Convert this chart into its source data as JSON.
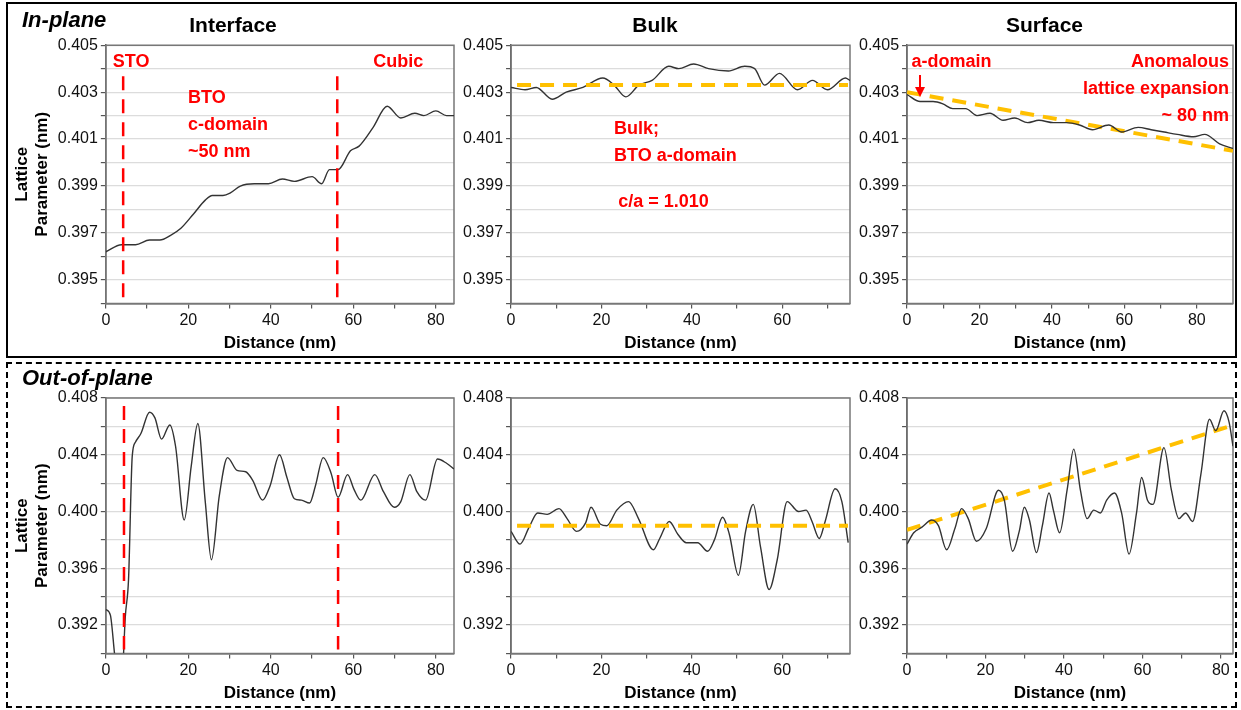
{
  "chart_data": [
    {
      "type": "line",
      "title": "Interface",
      "subtitle": "In-plane",
      "xlabel": "Distance (nm)",
      "ylabel": "Lattice\nParameter (nm)",
      "xlim": [
        0,
        84.4
      ],
      "ylim": [
        0.394,
        0.405
      ],
      "xticks": [
        0,
        {
          "value": 10,
          "label": null
        },
        20,
        {
          "value": 30,
          "label": null
        },
        40,
        {
          "value": 50,
          "label": null
        },
        60,
        {
          "value": 70,
          "label": null
        },
        80
      ],
      "yticks": [
        {
          "value": 0.394,
          "label": null
        },
        0.395,
        {
          "value": 0.396,
          "label": null
        },
        0.397,
        {
          "value": 0.398,
          "label": null
        },
        0.399,
        {
          "value": 0.4,
          "label": null
        },
        0.401,
        {
          "value": 0.402,
          "label": null
        },
        0.403,
        {
          "value": 0.404,
          "label": null
        },
        0.405
      ],
      "grid": "y",
      "legend": false,
      "marker": "none",
      "series": [
        {
          "color": "#333333",
          "x": [
            0,
            3.8,
            7.2,
            10.6,
            13.1,
            15.7,
            18.2,
            21.2,
            24.1,
            25.8,
            28.4,
            30.1,
            32.6,
            36,
            39.4,
            42.8,
            45.7,
            50,
            52.3,
            54.2,
            56.3,
            59.3,
            61.4,
            64.8,
            68.2,
            71.5,
            74.9,
            77.1,
            80,
            82.6,
            84.4
          ],
          "values": [
            0.3962,
            0.3965,
            0.3965,
            0.3967,
            0.3967,
            0.3969,
            0.3972,
            0.3978,
            0.3984,
            0.3986,
            0.3986,
            0.3987,
            0.399,
            0.3991,
            0.3991,
            0.3993,
            0.3992,
            0.3994,
            0.3991,
            0.3997,
            0.3997,
            0.4005,
            0.4007,
            0.4015,
            0.4024,
            0.4019,
            0.4021,
            0.402,
            0.4022,
            0.402,
            0.402
          ]
        }
      ],
      "ref_lines": [
        {
          "axis": "x",
          "value": 4.2,
          "color": "#ff0000",
          "line_style": "dashed"
        },
        {
          "axis": "x",
          "value": 56.1,
          "color": "#ff0000",
          "line_style": "dashed"
        }
      ],
      "annotations": [
        "STO",
        "Cubic",
        "BTO\nc-domain\n~50 nm"
      ]
    },
    {
      "type": "line",
      "title": "Bulk",
      "xlabel": "Distance (nm)",
      "xlim": [
        0,
        75
      ],
      "ylim": [
        0.394,
        0.405
      ],
      "xticks": [
        0,
        {
          "value": 10,
          "label": null
        },
        20,
        {
          "value": 30,
          "label": null
        },
        40,
        {
          "value": 50,
          "label": null
        },
        60,
        {
          "value": 70,
          "label": null
        }
      ],
      "yticks": [
        {
          "value": 0.394,
          "label": null
        },
        0.395,
        {
          "value": 0.396,
          "label": null
        },
        0.397,
        {
          "value": 0.398,
          "label": null
        },
        0.399,
        {
          "value": 0.4,
          "label": null
        },
        0.401,
        {
          "value": 0.402,
          "label": null
        },
        0.403,
        {
          "value": 0.404,
          "label": null
        },
        0.405
      ],
      "grid": "y",
      "legend": false,
      "marker": "none",
      "series": [
        {
          "color": "#333333",
          "x": [
            0,
            3.1,
            5.6,
            9.1,
            12.2,
            15.9,
            20.3,
            22.8,
            25.4,
            28.3,
            31.2,
            34.9,
            37.1,
            40.4,
            43.7,
            48.1,
            51.7,
            53.9,
            56.1,
            59.4,
            63.4,
            66.7,
            70,
            74,
            75
          ],
          "values": [
            0.4032,
            0.4031,
            0.4032,
            0.4027,
            0.403,
            0.4032,
            0.4036,
            0.4033,
            0.4028,
            0.4033,
            0.4035,
            0.4041,
            0.404,
            0.4042,
            0.404,
            0.4039,
            0.4041,
            0.404,
            0.4033,
            0.4038,
            0.4031,
            0.4035,
            0.4031,
            0.4036,
            0.4035
          ]
        }
      ],
      "ref_lines": [
        {
          "axis": "y",
          "value": 0.4033,
          "color": "#ffc000",
          "line_style": "dashed"
        }
      ],
      "annotations": [
        "Bulk;\nBTO a-domain",
        "c/a = 1.010"
      ]
    },
    {
      "type": "line",
      "title": "Surface",
      "xlabel": "Distance (nm)",
      "xlim": [
        0,
        90
      ],
      "ylim": [
        0.394,
        0.405
      ],
      "xticks": [
        0,
        {
          "value": 10,
          "label": null
        },
        20,
        {
          "value": 30,
          "label": null
        },
        40,
        {
          "value": 50,
          "label": null
        },
        60,
        {
          "value": 70,
          "label": null
        },
        80
      ],
      "yticks": [
        {
          "value": 0.394,
          "label": null
        },
        0.395,
        {
          "value": 0.396,
          "label": null
        },
        0.397,
        {
          "value": 0.398,
          "label": null
        },
        0.399,
        {
          "value": 0.4,
          "label": null
        },
        0.401,
        {
          "value": 0.402,
          "label": null
        },
        0.403,
        {
          "value": 0.404,
          "label": null
        },
        0.405
      ],
      "grid": "y",
      "legend": false,
      "marker": "none",
      "series": [
        {
          "color": "#333333",
          "x": [
            0,
            3.6,
            7.2,
            9.9,
            12.6,
            16.2,
            19.3,
            22.9,
            26.5,
            29.7,
            33.3,
            36.4,
            40.4,
            44,
            47.6,
            51.2,
            55.7,
            59.3,
            63.8,
            67.4,
            71,
            74.6,
            79.1,
            82.2,
            86.3,
            90
          ],
          "values": [
            0.4029,
            0.4026,
            0.4026,
            0.4025,
            0.4023,
            0.4023,
            0.402,
            0.4021,
            0.4018,
            0.4019,
            0.4017,
            0.4018,
            0.4017,
            0.4017,
            0.4016,
            0.4014,
            0.4016,
            0.4013,
            0.4015,
            0.4014,
            0.4013,
            0.4012,
            0.4011,
            0.4012,
            0.4008,
            0.4006
          ]
        },
        {
          "type": "line",
          "color": "#ffc000",
          "line_style": "dashed",
          "x": [
            0,
            90
          ],
          "values": [
            0.403,
            0.4005
          ]
        }
      ],
      "annotations": [
        "a-domain",
        "Anomalous\nlattice expansion\n~ 80 nm"
      ]
    },
    {
      "type": "line",
      "subtitle": "Out-of-plane",
      "xlabel": "Distance (nm)",
      "ylabel": "Lattice\nParameter (nm)",
      "xlim": [
        0,
        84.4
      ],
      "ylim": [
        0.39,
        0.408
      ],
      "xticks": [
        0,
        {
          "value": 10,
          "label": null
        },
        20,
        {
          "value": 30,
          "label": null
        },
        40,
        {
          "value": 50,
          "label": null
        },
        60,
        {
          "value": 70,
          "label": null
        },
        80
      ],
      "yticks": [
        {
          "value": 0.39,
          "label": null
        },
        0.392,
        {
          "value": 0.394,
          "label": null
        },
        0.396,
        {
          "value": 0.398,
          "label": null
        },
        {
          "value": 0.4,
          "label": "0.400"
        },
        {
          "value": 0.402,
          "label": null
        },
        0.404,
        {
          "value": 0.406,
          "label": null
        },
        0.408
      ],
      "grid": "y",
      "legend": false,
      "marker": "none",
      "series": [
        {
          "color": "#333333",
          "x": [
            0,
            1.1,
            2.1,
            3.2,
            4.3,
            4.7,
            5.5,
            6.4,
            7.2,
            8.5,
            10.6,
            11.9,
            13.5,
            15.5,
            16.9,
            19,
            20.7,
            22.3,
            24.1,
            25.6,
            27.5,
            29.5,
            31.8,
            33.9,
            35.6,
            38,
            39.8,
            42.1,
            43.9,
            45.7,
            47.4,
            49.4,
            50.8,
            52.7,
            54.6,
            56.3,
            58.6,
            60.1,
            61.8,
            65.2,
            67.3,
            69.9,
            71.5,
            73.7,
            75.4,
            77.5,
            80.4,
            82.6,
            84.4
          ],
          "values": [
            0.3931,
            0.3927,
            0.39,
            null,
            0.39,
            0.3925,
            0.3952,
            0.4039,
            0.4049,
            0.4055,
            0.407,
            0.4066,
            0.4051,
            0.4061,
            0.4046,
            0.3994,
            0.4032,
            0.4062,
            0.4007,
            0.3966,
            0.4011,
            0.4038,
            0.4029,
            0.4028,
            0.4022,
            0.4008,
            0.4018,
            0.404,
            0.4024,
            0.4009,
            0.4008,
            0.4006,
            0.4018,
            0.4038,
            0.4027,
            0.401,
            0.4026,
            0.4016,
            0.4008,
            0.4026,
            0.4014,
            0.4003,
            0.4007,
            0.4026,
            0.4014,
            0.4008,
            0.4037,
            0.4034,
            0.403
          ]
        }
      ],
      "ref_lines": [
        {
          "axis": "x",
          "value": 4.4,
          "color": "#ff0000",
          "line_style": "dashed"
        },
        {
          "axis": "x",
          "value": 56.3,
          "color": "#ff0000",
          "line_style": "dashed"
        }
      ]
    },
    {
      "type": "line",
      "xlabel": "Distance (nm)",
      "xlim": [
        0,
        75
      ],
      "ylim": [
        0.39,
        0.408
      ],
      "xticks": [
        0,
        {
          "value": 10,
          "label": null
        },
        20,
        {
          "value": 30,
          "label": null
        },
        40,
        {
          "value": 50,
          "label": null
        },
        60,
        {
          "value": 70,
          "label": null
        }
      ],
      "yticks": [
        {
          "value": 0.39,
          "label": null
        },
        0.392,
        {
          "value": 0.394,
          "label": null
        },
        0.396,
        {
          "value": 0.398,
          "label": null
        },
        {
          "value": 0.4,
          "label": "0.400"
        },
        {
          "value": 0.402,
          "label": null
        },
        0.404,
        {
          "value": 0.406,
          "label": null
        },
        0.408
      ],
      "grid": "y",
      "legend": false,
      "marker": "none",
      "series": [
        {
          "color": "#333333",
          "x": [
            0,
            2,
            4,
            5.9,
            8,
            10.6,
            12.4,
            14.5,
            16.5,
            17.7,
            19.8,
            21.2,
            23.4,
            26,
            28.2,
            31.5,
            32.9,
            35,
            36.9,
            38.8,
            41.3,
            43.5,
            45,
            46.8,
            48.3,
            50.3,
            51.9,
            53.6,
            55.2,
            57.1,
            58.9,
            61.1,
            63.6,
            65.3,
            66.6,
            68.2,
            69.5,
            71.7,
            73.2,
            74.6
          ],
          "values": [
            0.3986,
            0.3977,
            0.3989,
            0.3999,
            0.3998,
            0.4002,
            0.3995,
            0.3986,
            0.3992,
            0.4003,
            0.3991,
            0.399,
            0.4001,
            0.4007,
            0.3995,
            0.3973,
            0.3981,
            0.3993,
            0.3984,
            0.3978,
            0.3978,
            0.3972,
            0.398,
            0.3996,
            0.3984,
            0.3955,
            0.3986,
            0.4005,
            0.3975,
            0.3945,
            0.3966,
            0.4007,
            0.4,
            0.4001,
            0.3993,
            0.3981,
            0.3993,
            0.4016,
            0.4007,
            0.3978
          ]
        }
      ],
      "ref_lines": [
        {
          "axis": "y",
          "value": 0.399,
          "color": "#ffc000",
          "line_style": "dashed"
        }
      ]
    },
    {
      "type": "line",
      "xlabel": "Distance (nm)",
      "xlim": [
        0,
        83.1
      ],
      "ylim": [
        0.39,
        0.408
      ],
      "xticks": [
        0,
        {
          "value": 10,
          "label": null
        },
        20,
        {
          "value": 30,
          "label": null
        },
        40,
        {
          "value": 50,
          "label": null
        },
        60,
        {
          "value": 70,
          "label": null
        },
        80
      ],
      "yticks": [
        {
          "value": 0.39,
          "label": null
        },
        0.392,
        {
          "value": 0.394,
          "label": null
        },
        0.396,
        {
          "value": 0.398,
          "label": null
        },
        {
          "value": 0.4,
          "label": "0.400"
        },
        {
          "value": 0.402,
          "label": null
        },
        0.404,
        {
          "value": 0.406,
          "label": null
        },
        0.408
      ],
      "grid": "y",
      "legend": false,
      "marker": "none",
      "series": [
        {
          "color": "#333333",
          "x": [
            0,
            1.7,
            3.8,
            6.3,
            8,
            10.1,
            12.2,
            13.9,
            15.6,
            17.7,
            20.2,
            23.3,
            24.8,
            26.9,
            28.6,
            29.9,
            31.2,
            33,
            34.5,
            36.2,
            37.3,
            38.9,
            40.8,
            42.5,
            44.2,
            45.9,
            47.6,
            49.3,
            50.9,
            52.9,
            54.7,
            56.6,
            58.5,
            59.8,
            61.3,
            62.7,
            65.5,
            67.4,
            69.3,
            71,
            72.8,
            74.9,
            77.1,
            78.7,
            80.8,
            82.1,
            83.1
          ],
          "values": [
            0.3977,
            0.3985,
            0.3989,
            0.3994,
            0.399,
            0.3973,
            0.3988,
            0.4002,
            0.3995,
            0.3979,
            0.3988,
            0.4015,
            0.4008,
            0.3972,
            0.3986,
            0.4003,
            0.3994,
            0.3971,
            0.399,
            0.4013,
            0.4001,
            0.3985,
            0.4015,
            0.4044,
            0.4015,
            0.3995,
            0.4001,
            0.3999,
            0.4008,
            0.4013,
            0.3999,
            0.397,
            0.3999,
            0.4024,
            0.4008,
            0.4005,
            0.4045,
            0.4015,
            0.3995,
            0.3999,
            0.3993,
            0.4026,
            0.4065,
            0.4057,
            0.4071,
            0.4063,
            0.4046
          ]
        },
        {
          "type": "line",
          "color": "#ffc000",
          "line_style": "dashed",
          "x": [
            0,
            82.1
          ],
          "values": [
            0.3987,
            0.406
          ]
        }
      ]
    }
  ]
}
